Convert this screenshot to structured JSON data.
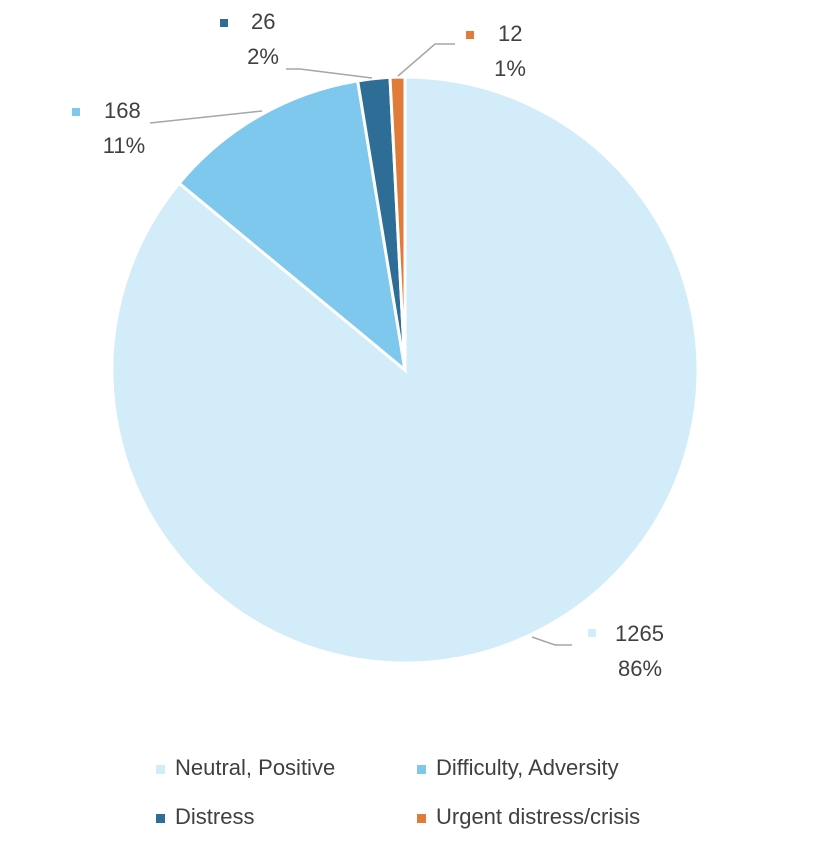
{
  "chart_data": {
    "type": "pie",
    "categories": [
      "Neutral, Positive",
      "Difficulty, Adversity",
      "Distress",
      "Urgent distress/crisis"
    ],
    "values": [
      1265,
      168,
      26,
      12
    ],
    "percent_labels": [
      "86%",
      "11%",
      "2%",
      "1%"
    ],
    "colors": [
      "#d3ecf9",
      "#7ec8ee",
      "#2e6e96",
      "#e07b39"
    ],
    "legend": "bottom"
  }
}
